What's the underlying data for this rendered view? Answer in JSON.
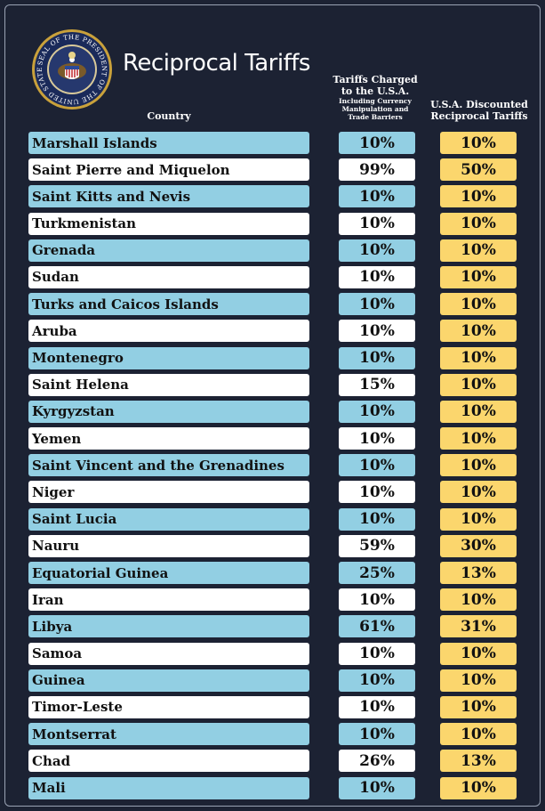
{
  "title": "Reciprocal Tariffs",
  "seal": {
    "text_top": "SEAL OF THE PRESIDENT OF THE UNITED STATES",
    "icon": "presidential-seal-icon"
  },
  "headers": {
    "country": "Country",
    "charged": "Tariffs Charged to the U.S.A.",
    "charged_sub": "Including Currency Manipulation and Trade Barriers",
    "discounted": "U.S.A. Discounted Reciprocal Tariffs"
  },
  "colors": {
    "background": "#1c2233",
    "row_blue": "#92cfe3",
    "row_white": "#ffffff",
    "discount": "#fbd66d"
  },
  "rows": [
    {
      "country": "Marshall Islands",
      "charged": "10%",
      "discounted": "10%"
    },
    {
      "country": "Saint Pierre and Miquelon",
      "charged": "99%",
      "discounted": "50%"
    },
    {
      "country": "Saint Kitts and Nevis",
      "charged": "10%",
      "discounted": "10%"
    },
    {
      "country": "Turkmenistan",
      "charged": "10%",
      "discounted": "10%"
    },
    {
      "country": "Grenada",
      "charged": "10%",
      "discounted": "10%"
    },
    {
      "country": "Sudan",
      "charged": "10%",
      "discounted": "10%"
    },
    {
      "country": "Turks and Caicos Islands",
      "charged": "10%",
      "discounted": "10%"
    },
    {
      "country": "Aruba",
      "charged": "10%",
      "discounted": "10%"
    },
    {
      "country": "Montenegro",
      "charged": "10%",
      "discounted": "10%"
    },
    {
      "country": "Saint Helena",
      "charged": "15%",
      "discounted": "10%"
    },
    {
      "country": "Kyrgyzstan",
      "charged": "10%",
      "discounted": "10%"
    },
    {
      "country": "Yemen",
      "charged": "10%",
      "discounted": "10%"
    },
    {
      "country": "Saint Vincent and the Grenadines",
      "charged": "10%",
      "discounted": "10%"
    },
    {
      "country": "Niger",
      "charged": "10%",
      "discounted": "10%"
    },
    {
      "country": "Saint Lucia",
      "charged": "10%",
      "discounted": "10%"
    },
    {
      "country": "Nauru",
      "charged": "59%",
      "discounted": "30%"
    },
    {
      "country": "Equatorial Guinea",
      "charged": "25%",
      "discounted": "13%"
    },
    {
      "country": "Iran",
      "charged": "10%",
      "discounted": "10%"
    },
    {
      "country": "Libya",
      "charged": "61%",
      "discounted": "31%"
    },
    {
      "country": "Samoa",
      "charged": "10%",
      "discounted": "10%"
    },
    {
      "country": "Guinea",
      "charged": "10%",
      "discounted": "10%"
    },
    {
      "country": "Timor-Leste",
      "charged": "10%",
      "discounted": "10%"
    },
    {
      "country": "Montserrat",
      "charged": "10%",
      "discounted": "10%"
    },
    {
      "country": "Chad",
      "charged": "26%",
      "discounted": "13%"
    },
    {
      "country": "Mali",
      "charged": "10%",
      "discounted": "10%"
    }
  ]
}
